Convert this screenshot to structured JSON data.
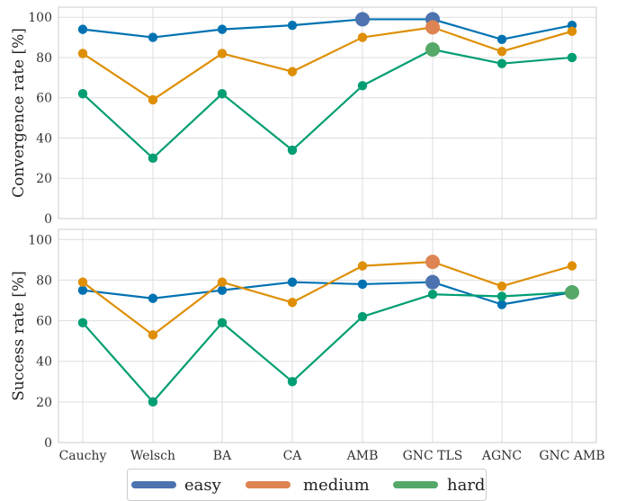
{
  "chart_data": [
    {
      "type": "line",
      "panel": "top",
      "ylabel": "Convergence rate [%]",
      "ylim": [
        0,
        105
      ],
      "yticks": [
        0,
        20,
        40,
        60,
        80,
        100
      ],
      "grid": true,
      "categories": [
        "Cauchy",
        "Welsch",
        "BA",
        "CA",
        "AMB",
        "GNC TLS",
        "AGNC",
        "GNC AMB"
      ],
      "series": [
        {
          "name": "easy",
          "color": "#0072b2",
          "values": [
            94,
            90,
            94,
            96,
            99,
            99,
            89,
            96
          ],
          "highlight": [
            4,
            5
          ]
        },
        {
          "name": "medium",
          "color": "#de8f05",
          "values": [
            82,
            59,
            82,
            73,
            90,
            95,
            83,
            93
          ],
          "highlight": [
            5
          ]
        },
        {
          "name": "hard",
          "color": "#029e73",
          "values": [
            62,
            30,
            62,
            34,
            66,
            84,
            77,
            80
          ],
          "highlight": [
            5
          ]
        }
      ]
    },
    {
      "type": "line",
      "panel": "bottom",
      "ylabel": "Success rate [%]",
      "ylim": [
        0,
        105
      ],
      "yticks": [
        0,
        20,
        40,
        60,
        80,
        100
      ],
      "grid": true,
      "categories": [
        "Cauchy",
        "Welsch",
        "BA",
        "CA",
        "AMB",
        "GNC TLS",
        "AGNC",
        "GNC AMB"
      ],
      "series": [
        {
          "name": "easy",
          "color": "#0072b2",
          "values": [
            75,
            71,
            75,
            79,
            78,
            79,
            68,
            74
          ],
          "highlight": [
            5
          ]
        },
        {
          "name": "medium",
          "color": "#de8f05",
          "values": [
            79,
            53,
            79,
            69,
            87,
            89,
            77,
            87
          ],
          "highlight": [
            5
          ]
        },
        {
          "name": "hard",
          "color": "#029e73",
          "values": [
            59,
            20,
            59,
            30,
            62,
            73,
            72,
            74
          ],
          "highlight": [
            7
          ]
        }
      ]
    }
  ],
  "legend": {
    "placement": "bottom-center",
    "items": [
      {
        "label": "easy",
        "color": "#4c72b0"
      },
      {
        "label": "medium",
        "color": "#dd8452"
      },
      {
        "label": "hard",
        "color": "#55a868"
      }
    ]
  }
}
